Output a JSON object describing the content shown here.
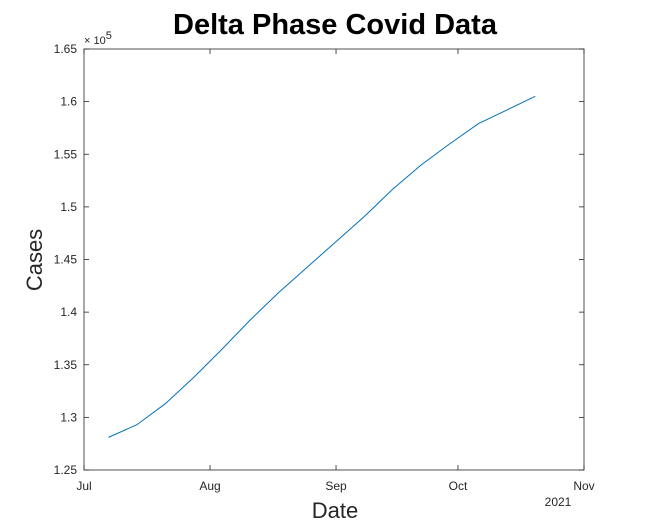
{
  "chart_data": {
    "type": "line",
    "title": "Delta Phase Covid Data",
    "xlabel": "Date",
    "ylabel": "Cases",
    "y_exponent_label": "× 10",
    "y_exponent_power": "5",
    "x_year_label": "2021",
    "xlim": [
      "2021-07-01",
      "2021-11-01"
    ],
    "ylim": [
      1.25,
      1.65
    ],
    "y_scale_factor": 100000,
    "x_ticks": [
      {
        "date": "2021-07-01",
        "label": "Jul"
      },
      {
        "date": "2021-08-01",
        "label": "Aug"
      },
      {
        "date": "2021-09-01",
        "label": "Sep"
      },
      {
        "date": "2021-10-01",
        "label": "Oct"
      },
      {
        "date": "2021-11-01",
        "label": "Nov"
      }
    ],
    "y_ticks": [
      {
        "value": 1.25,
        "label": "1.25"
      },
      {
        "value": 1.3,
        "label": "1.3"
      },
      {
        "value": 1.35,
        "label": "1.35"
      },
      {
        "value": 1.4,
        "label": "1.4"
      },
      {
        "value": 1.45,
        "label": "1.45"
      },
      {
        "value": 1.5,
        "label": "1.5"
      },
      {
        "value": 1.55,
        "label": "1.55"
      },
      {
        "value": 1.6,
        "label": "1.6"
      },
      {
        "value": 1.65,
        "label": "1.65"
      }
    ],
    "grid": false,
    "series": [
      {
        "color": "#0072bd",
        "x": [
          "2021-07-07",
          "2021-07-14",
          "2021-07-21",
          "2021-07-28",
          "2021-08-04",
          "2021-08-11",
          "2021-08-18",
          "2021-08-25",
          "2021-09-01",
          "2021-09-08",
          "2021-09-15",
          "2021-09-22",
          "2021-09-29",
          "2021-10-06",
          "2021-10-13",
          "2021-10-20"
        ],
        "y": [
          1.281,
          1.293,
          1.313,
          1.338,
          1.365,
          1.393,
          1.419,
          1.443,
          1.467,
          1.491,
          1.517,
          1.54,
          1.56,
          1.579,
          1.592,
          1.605
        ]
      }
    ]
  }
}
